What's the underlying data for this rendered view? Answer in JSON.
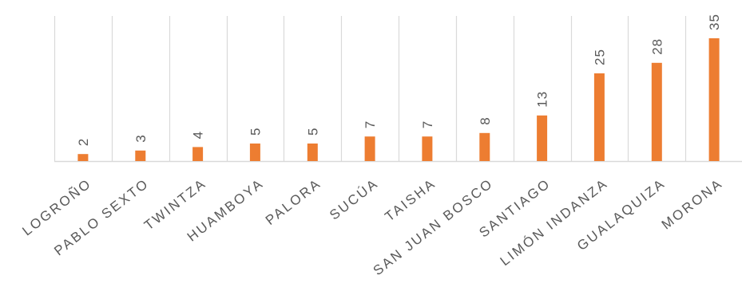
{
  "chart_data": {
    "type": "bar",
    "categories": [
      "LOGROÑO",
      "PABLO SEXTO",
      "TWINTZA",
      "HUAMBOYA",
      "PALORA",
      "SUCÚA",
      "TAISHA",
      "SAN JUAN BOSCO",
      "SANTIAGO",
      "LIMÓN INDANZA",
      "GUALAQUIZA",
      "MORONA"
    ],
    "values": [
      2,
      3,
      4,
      5,
      5,
      7,
      7,
      8,
      13,
      25,
      28,
      35
    ],
    "ylim": [
      0,
      35
    ],
    "grid": true,
    "legend": false,
    "colors": {
      "bar": "#ed7d31",
      "grid": "#d9d9d9",
      "text": "#595959"
    }
  }
}
